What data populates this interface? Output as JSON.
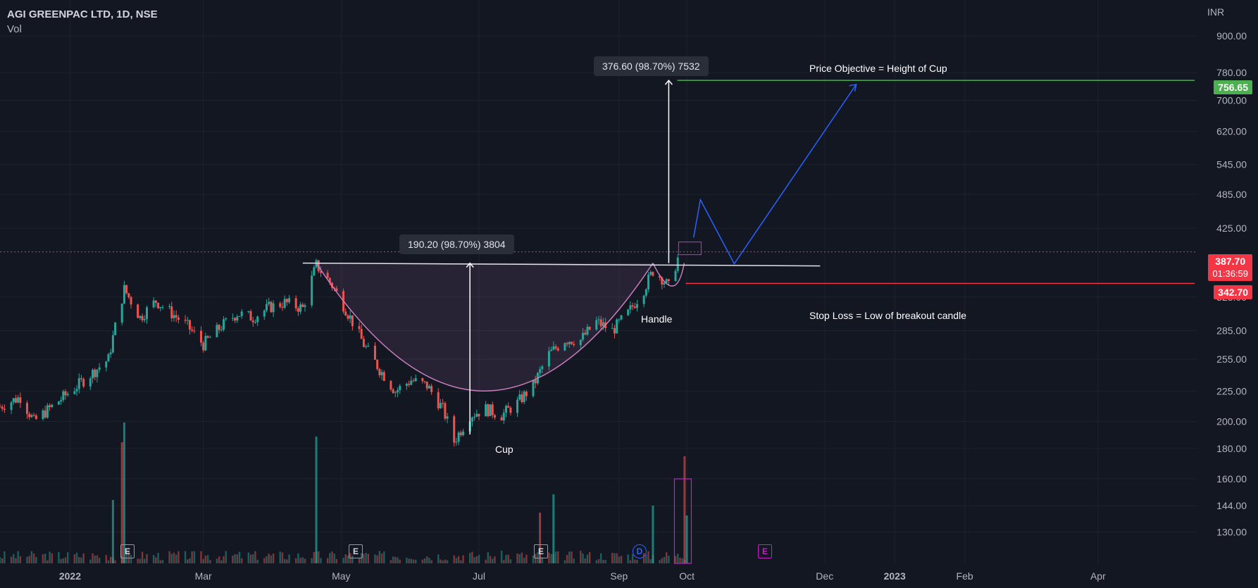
{
  "header": {
    "title": "AGI GREENPAC LTD, 1D, NSE",
    "volume_label": "Vol"
  },
  "currency": "INR",
  "colors": {
    "up": "#26a69a",
    "down": "#ef5350",
    "pattern": "#c77dbd",
    "projection": "#2962ff",
    "target": "#4caf50",
    "stop": "#f23645"
  },
  "price_tags": {
    "target": "756.65",
    "current": "387.70",
    "countdown": "01:36:59",
    "stop": "342.70"
  },
  "measurements": {
    "cup_depth": "190.20 (98.70%) 3804",
    "breakout_target": "376.60 (98.70%) 7532"
  },
  "annotations": {
    "objective": "Price Objective = Height of Cup",
    "stop_loss": "Stop Loss = Low of breakout candle",
    "cup": "Cup",
    "handle": "Handle"
  },
  "events": {
    "earnings": "E",
    "dividend": "D"
  },
  "chart_data": {
    "type": "line",
    "title": "AGI GREENPAC LTD, 1D, NSE",
    "ylabel": "INR",
    "ylim": [
      115,
      980
    ],
    "y_scale": "log",
    "y_ticks": [
      "900.00",
      "780.00",
      "700.00",
      "620.00",
      "545.00",
      "485.00",
      "425.00",
      "325.00",
      "285.00",
      "255.00",
      "225.00",
      "200.00",
      "180.00",
      "160.00",
      "144.00",
      "130.00"
    ],
    "x_ticks": [
      "2022",
      "Mar",
      "May",
      "Jul",
      "Sep",
      "Oct",
      "Dec",
      "2023",
      "Feb",
      "Apr"
    ],
    "x_range": [
      "2021-12-01",
      "2023-05-15"
    ],
    "series": [
      {
        "values": [
          [
            "2021-12-01",
            212
          ],
          [
            "2021-12-10",
            220
          ],
          [
            "2021-12-16",
            200
          ],
          [
            "2021-12-24",
            212
          ],
          [
            "2022-01-03",
            228
          ],
          [
            "2022-01-10",
            240
          ],
          [
            "2022-01-18",
            255
          ],
          [
            "2022-01-25",
            335
          ],
          [
            "2022-02-01",
            300
          ],
          [
            "2022-02-08",
            320
          ],
          [
            "2022-02-15",
            305
          ],
          [
            "2022-02-22",
            290
          ],
          [
            "2022-03-01",
            270
          ],
          [
            "2022-03-09",
            290
          ],
          [
            "2022-03-16",
            305
          ],
          [
            "2022-03-23",
            300
          ],
          [
            "2022-03-30",
            312
          ],
          [
            "2022-04-06",
            318
          ],
          [
            "2022-04-14",
            311
          ],
          [
            "2022-04-20",
            368
          ],
          [
            "2022-04-27",
            340
          ],
          [
            "2022-05-04",
            305
          ],
          [
            "2022-05-11",
            270
          ],
          [
            "2022-05-18",
            245
          ],
          [
            "2022-05-25",
            225
          ],
          [
            "2022-06-01",
            235
          ],
          [
            "2022-06-08",
            230
          ],
          [
            "2022-06-15",
            210
          ],
          [
            "2022-06-20",
            185
          ],
          [
            "2022-06-27",
            205
          ],
          [
            "2022-07-04",
            210
          ],
          [
            "2022-07-11",
            205
          ],
          [
            "2022-07-18",
            215
          ],
          [
            "2022-07-25",
            230
          ],
          [
            "2022-08-01",
            260
          ],
          [
            "2022-08-08",
            275
          ],
          [
            "2022-08-15",
            275
          ],
          [
            "2022-08-22",
            295
          ],
          [
            "2022-08-29",
            285
          ],
          [
            "2022-09-05",
            305
          ],
          [
            "2022-09-12",
            335
          ],
          [
            "2022-09-16",
            360
          ],
          [
            "2022-09-20",
            350
          ],
          [
            "2022-09-23",
            338
          ],
          [
            "2022-09-28",
            387.7
          ]
        ]
      }
    ],
    "volume": [
      [
        "2022-01-20",
        0.45
      ],
      [
        "2022-01-24",
        0.86
      ],
      [
        "2022-01-25",
        1.0
      ],
      [
        "2022-04-20",
        0.9
      ],
      [
        "2022-07-28",
        0.36
      ],
      [
        "2022-08-03",
        0.49
      ],
      [
        "2022-09-16",
        0.41
      ],
      [
        "2022-09-30",
        0.76
      ],
      [
        "2022-10-01",
        0.34
      ]
    ],
    "levels": {
      "neckline": 371,
      "target": 756.65,
      "current": 387.7,
      "stop": 342.7,
      "cup_low": 190.2
    },
    "projection_path": [
      [
        "2022-10-04",
        410
      ],
      [
        "2022-10-07",
        475
      ],
      [
        "2022-10-22",
        370
      ],
      [
        "2022-12-15",
        745
      ]
    ]
  }
}
